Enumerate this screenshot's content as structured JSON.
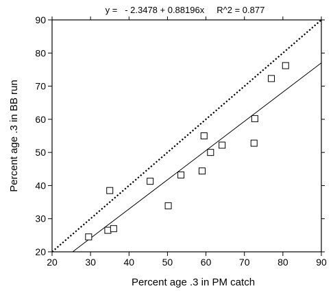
{
  "chart_data": {
    "type": "scatter",
    "title": "y =   - 2.3478 + 0.88196x     R^2 = 0.877",
    "xlabel": "Percent age .3 in PM catch",
    "ylabel": "Percent age .3 in BB run",
    "xlim": [
      20,
      90
    ],
    "ylim": [
      20,
      90
    ],
    "xticks": [
      20,
      30,
      40,
      50,
      60,
      70,
      80,
      90
    ],
    "yticks": [
      20,
      30,
      40,
      50,
      60,
      70,
      80,
      90
    ],
    "grid": false,
    "points": [
      {
        "x": 29.5,
        "y": 24.5
      },
      {
        "x": 34.5,
        "y": 26.5
      },
      {
        "x": 36.0,
        "y": 27.0
      },
      {
        "x": 35.0,
        "y": 38.5
      },
      {
        "x": 45.5,
        "y": 41.3
      },
      {
        "x": 50.2,
        "y": 33.9
      },
      {
        "x": 53.5,
        "y": 43.2
      },
      {
        "x": 59.0,
        "y": 44.4
      },
      {
        "x": 59.5,
        "y": 55.0
      },
      {
        "x": 61.2,
        "y": 50.0
      },
      {
        "x": 64.2,
        "y": 52.2
      },
      {
        "x": 72.5,
        "y": 52.8
      },
      {
        "x": 72.7,
        "y": 60.2
      },
      {
        "x": 77.0,
        "y": 72.3
      },
      {
        "x": 80.7,
        "y": 76.2
      }
    ],
    "regression": {
      "intercept": -2.3478,
      "slope": 0.88196
    },
    "identity_line": {
      "style": "dotted"
    }
  }
}
